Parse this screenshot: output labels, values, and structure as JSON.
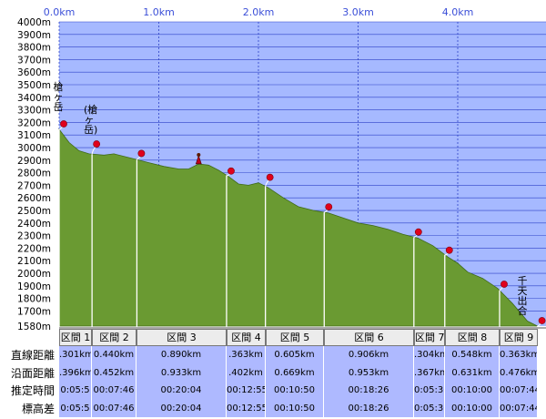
{
  "chart_data": {
    "type": "area",
    "title": "",
    "xlabel": "",
    "ylabel": "",
    "x_unit": "km",
    "y_unit": "m",
    "xlim": [
      0,
      4.8
    ],
    "ylim": [
      1580,
      4000
    ],
    "x_ticks": [
      "0.0km",
      "1.0km",
      "2.0km",
      "3.0km",
      "4.0km"
    ],
    "y_ticks": [
      "1580m",
      "1700m",
      "1800m",
      "1900m",
      "2000m",
      "2100m",
      "2200m",
      "2300m",
      "2400m",
      "2500m",
      "2600m",
      "2700m",
      "2800m",
      "2900m",
      "3000m",
      "3100m",
      "3200m",
      "3300m",
      "3400m",
      "3500m",
      "3600m",
      "3700m",
      "3800m",
      "3900m",
      "4000m"
    ],
    "profile": {
      "x": [
        0,
        0.1,
        0.2,
        0.3,
        0.45,
        0.55,
        0.75,
        0.9,
        1.05,
        1.2,
        1.3,
        1.4,
        1.5,
        1.6,
        1.7,
        1.8,
        1.9,
        2.0,
        2.1,
        2.25,
        2.4,
        2.55,
        2.7,
        2.85,
        3.0,
        3.15,
        3.3,
        3.45,
        3.6,
        3.75,
        3.9,
        4.0,
        4.1,
        4.25,
        4.4,
        4.55,
        4.7,
        4.8
      ],
      "y": [
        3145,
        3040,
        2975,
        2950,
        2940,
        2950,
        2910,
        2880,
        2850,
        2830,
        2830,
        2870,
        2860,
        2820,
        2770,
        2710,
        2700,
        2720,
        2680,
        2600,
        2530,
        2500,
        2480,
        2440,
        2400,
        2380,
        2350,
        2310,
        2280,
        2220,
        2130,
        2080,
        2010,
        1960,
        1880,
        1760,
        1620,
        1580
      ]
    },
    "grid": true,
    "fill_color": "#6a9a32",
    "plot_background": "#a6b9ff",
    "grid_color": "#2e43c8",
    "marker_color": "#e0001b",
    "peaks": [
      {
        "label": "槍ヶ岳",
        "x": 0.05
      },
      {
        "label": "(槍ヶ岳)",
        "x": 0.33
      },
      {
        "label": "千天出合",
        "x": 4.8
      }
    ],
    "markers": [
      {
        "x": 0.0,
        "y": 3145
      },
      {
        "x": 0.33,
        "y": 2985
      },
      {
        "x": 0.78,
        "y": 2910
      },
      {
        "x": 1.68,
        "y": 2770
      },
      {
        "x": 2.07,
        "y": 2720
      },
      {
        "x": 2.66,
        "y": 2485
      },
      {
        "x": 3.56,
        "y": 2285
      },
      {
        "x": 3.87,
        "y": 2140
      },
      {
        "x": 4.42,
        "y": 1870
      },
      {
        "x": 4.8,
        "y": 1580
      }
    ],
    "hiker_x": 1.4,
    "segments": [
      {
        "label": "区間 1",
        "x0": 0.0,
        "x1": 0.33,
        "straight": ".301km",
        "along": ".396km",
        "est_time": "0:05:5",
        "elev_diff": "0:05:5"
      },
      {
        "label": "区間 2",
        "x0": 0.33,
        "x1": 0.78,
        "straight": "0.440km",
        "along": "0.452km",
        "est_time": "00:07:46",
        "elev_diff": "00:07:46"
      },
      {
        "label": "区間 3",
        "x0": 0.78,
        "x1": 1.68,
        "straight": "0.890km",
        "along": "0.933km",
        "est_time": "00:20:04",
        "elev_diff": "00:20:04"
      },
      {
        "label": "区間 4",
        "x0": 1.68,
        "x1": 2.07,
        "straight": ".363km",
        "along": ".402km",
        "est_time": "00:12:55",
        "elev_diff": "00:12:55"
      },
      {
        "label": "区間 5",
        "x0": 2.07,
        "x1": 2.66,
        "straight": "0.605km",
        "along": "0.669km",
        "est_time": "00:10:50",
        "elev_diff": "00:10:50"
      },
      {
        "label": "区間 6",
        "x0": 2.66,
        "x1": 3.56,
        "straight": "0.906km",
        "along": "0.953km",
        "est_time": "00:18:26",
        "elev_diff": "00:18:26"
      },
      {
        "label": "区間 7",
        "x0": 3.56,
        "x1": 3.87,
        "straight": ".304km",
        "along": ".367km",
        "est_time": "0:05:30",
        "elev_diff": "0:05:30"
      },
      {
        "label": "区間 8",
        "x0": 3.87,
        "x1": 4.42,
        "straight": "0.548km",
        "along": "0.631km",
        "est_time": "00:10:00",
        "elev_diff": "00:10:00"
      },
      {
        "label": "区間 9",
        "x0": 4.42,
        "x1": 4.8,
        "straight": "0.363km",
        "along": "0.476km",
        "est_time": "00:07:44",
        "elev_diff": "00:07:44"
      }
    ],
    "row_labels": [
      "直線距離",
      "沿面距離",
      "推定時間",
      "標高差"
    ]
  }
}
